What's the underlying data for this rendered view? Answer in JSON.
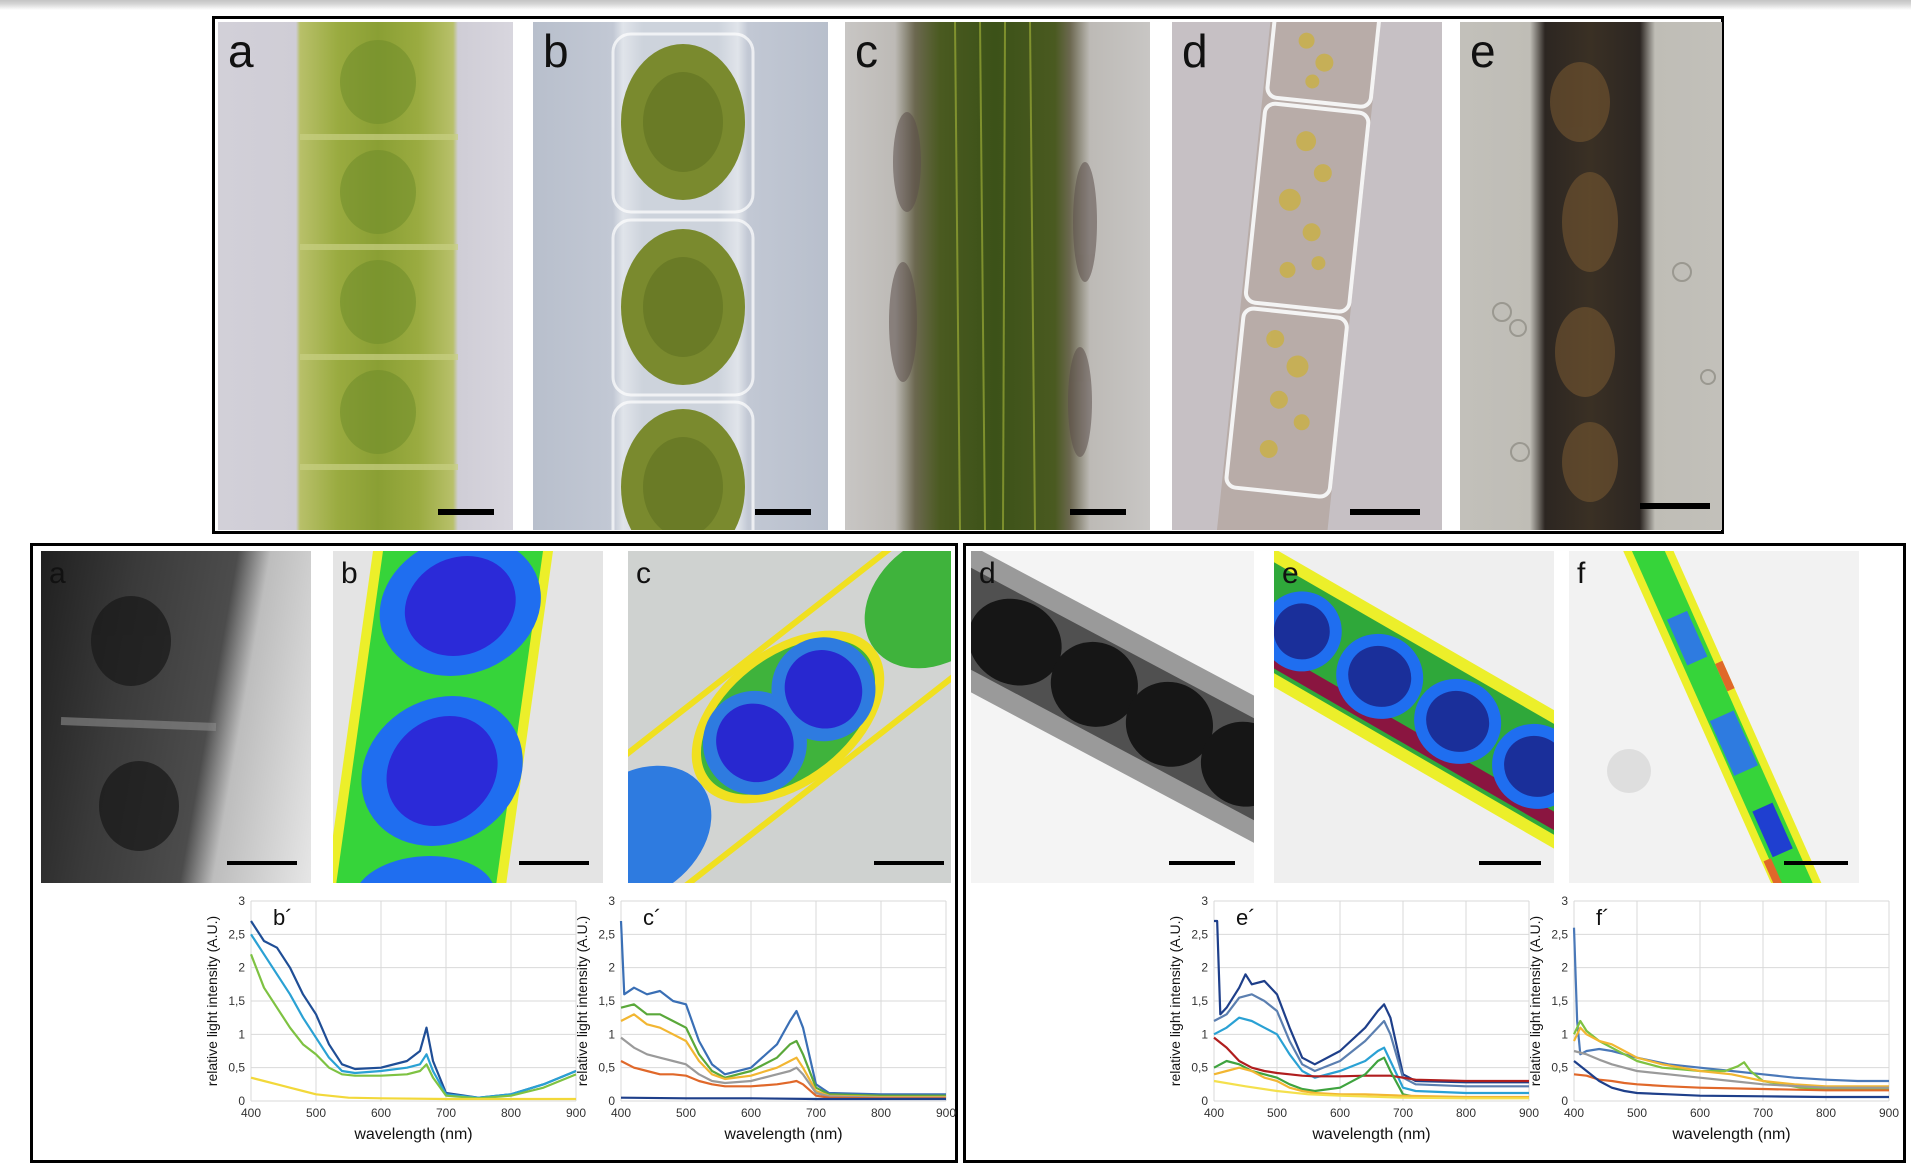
{
  "figure": {
    "top_row": {
      "panels": [
        {
          "label": "a"
        },
        {
          "label": "b"
        },
        {
          "label": "c"
        },
        {
          "label": "d"
        },
        {
          "label": "e"
        }
      ]
    },
    "bottom_left": {
      "panels": [
        {
          "label": "a"
        },
        {
          "label": "b"
        },
        {
          "label": "c"
        }
      ]
    },
    "bottom_right": {
      "panels": [
        {
          "label": "d"
        },
        {
          "label": "e"
        },
        {
          "label": "f"
        }
      ]
    }
  },
  "chart_data": [
    {
      "type": "line",
      "panel_label": "b´",
      "xlabel": "wavelength (nm)",
      "ylabel": "relative light intensity (A.U.)",
      "xlim": [
        400,
        900
      ],
      "ylim": [
        0,
        3
      ],
      "xticks": [
        "400",
        "500",
        "600",
        "700",
        "800",
        "900"
      ],
      "yticks": [
        "0",
        "0,5",
        "1",
        "1,5",
        "2",
        "2,5",
        "3"
      ],
      "grid": true,
      "series": [
        {
          "color": "#1f4e96",
          "x": [
            400,
            420,
            440,
            460,
            480,
            500,
            520,
            540,
            560,
            600,
            640,
            660,
            670,
            680,
            700,
            750,
            800,
            850,
            900
          ],
          "y": [
            2.7,
            2.4,
            2.3,
            2.0,
            1.6,
            1.3,
            0.85,
            0.55,
            0.48,
            0.5,
            0.6,
            0.75,
            1.1,
            0.6,
            0.12,
            0.05,
            0.1,
            0.25,
            0.45
          ]
        },
        {
          "color": "#2aa1d4",
          "x": [
            400,
            420,
            440,
            460,
            480,
            500,
            520,
            540,
            560,
            600,
            640,
            660,
            670,
            680,
            700,
            750,
            800,
            850,
            900
          ],
          "y": [
            2.5,
            2.2,
            1.9,
            1.6,
            1.25,
            0.95,
            0.65,
            0.45,
            0.42,
            0.45,
            0.5,
            0.55,
            0.7,
            0.45,
            0.1,
            0.05,
            0.1,
            0.25,
            0.45
          ]
        },
        {
          "color": "#7ec242",
          "x": [
            400,
            420,
            440,
            460,
            480,
            500,
            520,
            540,
            560,
            600,
            640,
            660,
            670,
            680,
            700,
            750,
            800,
            850,
            900
          ],
          "y": [
            2.2,
            1.7,
            1.4,
            1.1,
            0.85,
            0.7,
            0.5,
            0.4,
            0.38,
            0.38,
            0.4,
            0.45,
            0.55,
            0.35,
            0.08,
            0.04,
            0.08,
            0.2,
            0.4
          ]
        },
        {
          "color": "#f2d83a",
          "x": [
            400,
            420,
            440,
            460,
            480,
            500,
            550,
            600,
            700,
            800,
            900
          ],
          "y": [
            0.35,
            0.3,
            0.25,
            0.2,
            0.15,
            0.1,
            0.05,
            0.04,
            0.03,
            0.03,
            0.03
          ]
        }
      ]
    },
    {
      "type": "line",
      "panel_label": "c´",
      "xlabel": "wavelength (nm)",
      "ylabel": "relative light intensity (A.U.)",
      "xlim": [
        400,
        900
      ],
      "ylim": [
        0,
        3
      ],
      "xticks": [
        "400",
        "500",
        "600",
        "700",
        "800",
        "900"
      ],
      "yticks": [
        "0",
        "0,5",
        "1",
        "1,5",
        "2",
        "2,5",
        "3"
      ],
      "grid": true,
      "series": [
        {
          "color": "#3a6fb5",
          "x": [
            400,
            405,
            420,
            440,
            460,
            480,
            500,
            520,
            540,
            560,
            600,
            640,
            660,
            670,
            680,
            700,
            720,
            800,
            900
          ],
          "y": [
            2.7,
            1.6,
            1.7,
            1.6,
            1.65,
            1.5,
            1.45,
            0.9,
            0.55,
            0.4,
            0.5,
            0.85,
            1.2,
            1.35,
            1.1,
            0.25,
            0.12,
            0.1,
            0.1
          ]
        },
        {
          "color": "#5aa83a",
          "x": [
            400,
            420,
            440,
            460,
            480,
            500,
            520,
            540,
            560,
            600,
            640,
            660,
            670,
            680,
            700,
            720,
            800,
            900
          ],
          "y": [
            1.4,
            1.45,
            1.3,
            1.3,
            1.2,
            1.1,
            0.7,
            0.45,
            0.35,
            0.45,
            0.65,
            0.85,
            0.9,
            0.7,
            0.2,
            0.1,
            0.08,
            0.08
          ]
        },
        {
          "color": "#f2b632",
          "x": [
            400,
            420,
            440,
            460,
            480,
            500,
            520,
            540,
            560,
            600,
            640,
            660,
            670,
            680,
            700,
            720,
            800,
            900
          ],
          "y": [
            1.2,
            1.3,
            1.15,
            1.1,
            1.0,
            0.9,
            0.6,
            0.4,
            0.33,
            0.38,
            0.5,
            0.6,
            0.65,
            0.5,
            0.15,
            0.08,
            0.06,
            0.06
          ]
        },
        {
          "color": "#9a9a9a",
          "x": [
            400,
            420,
            440,
            460,
            480,
            500,
            520,
            540,
            560,
            600,
            640,
            660,
            670,
            680,
            700,
            720,
            800,
            900
          ],
          "y": [
            0.95,
            0.8,
            0.7,
            0.65,
            0.6,
            0.55,
            0.4,
            0.3,
            0.27,
            0.3,
            0.4,
            0.45,
            0.5,
            0.4,
            0.12,
            0.07,
            0.05,
            0.05
          ]
        },
        {
          "color": "#e0682a",
          "x": [
            400,
            420,
            440,
            460,
            480,
            500,
            520,
            540,
            560,
            600,
            640,
            660,
            670,
            680,
            700,
            720,
            800,
            900
          ],
          "y": [
            0.6,
            0.5,
            0.45,
            0.4,
            0.4,
            0.38,
            0.3,
            0.25,
            0.22,
            0.22,
            0.25,
            0.28,
            0.3,
            0.25,
            0.08,
            0.05,
            0.04,
            0.04
          ]
        },
        {
          "color": "#1e3f8a",
          "x": [
            400,
            500,
            600,
            700,
            800,
            900
          ],
          "y": [
            0.05,
            0.04,
            0.04,
            0.03,
            0.03,
            0.03
          ]
        }
      ]
    },
    {
      "type": "line",
      "panel_label": "e´",
      "xlabel": "wavelength (nm)",
      "ylabel": "relative light intensity (A.U.)",
      "xlim": [
        400,
        900
      ],
      "ylim": [
        0,
        3
      ],
      "xticks": [
        "400",
        "500",
        "600",
        "700",
        "800",
        "900"
      ],
      "yticks": [
        "0",
        "0,5",
        "1",
        "1,5",
        "2",
        "2,5",
        "3"
      ],
      "grid": true,
      "series": [
        {
          "color": "#1e3f8a",
          "x": [
            400,
            405,
            410,
            420,
            440,
            450,
            460,
            480,
            500,
            520,
            540,
            560,
            600,
            640,
            660,
            670,
            680,
            700,
            720,
            800,
            900
          ],
          "y": [
            2.7,
            2.7,
            1.3,
            1.4,
            1.7,
            1.9,
            1.75,
            1.8,
            1.6,
            1.1,
            0.65,
            0.55,
            0.75,
            1.1,
            1.35,
            1.45,
            1.25,
            0.4,
            0.3,
            0.28,
            0.28
          ]
        },
        {
          "color": "#5b7fb0",
          "x": [
            400,
            420,
            440,
            460,
            480,
            500,
            520,
            540,
            560,
            600,
            640,
            660,
            670,
            680,
            700,
            720,
            800,
            900
          ],
          "y": [
            1.2,
            1.3,
            1.55,
            1.6,
            1.5,
            1.35,
            0.9,
            0.55,
            0.45,
            0.6,
            0.9,
            1.1,
            1.2,
            1.0,
            0.35,
            0.25,
            0.22,
            0.22
          ]
        },
        {
          "color": "#2aa1d4",
          "x": [
            400,
            420,
            440,
            460,
            480,
            500,
            520,
            540,
            560,
            600,
            640,
            660,
            670,
            680,
            700,
            720,
            800,
            900
          ],
          "y": [
            1.0,
            1.1,
            1.25,
            1.2,
            1.1,
            1.0,
            0.7,
            0.45,
            0.35,
            0.45,
            0.6,
            0.75,
            0.8,
            0.6,
            0.2,
            0.15,
            0.12,
            0.12
          ]
        },
        {
          "color": "#b01e1e",
          "x": [
            400,
            420,
            440,
            460,
            480,
            500,
            520,
            540,
            560,
            600,
            640,
            660,
            680,
            700,
            720,
            800,
            900
          ],
          "y": [
            0.95,
            0.8,
            0.6,
            0.5,
            0.45,
            0.42,
            0.4,
            0.38,
            0.37,
            0.37,
            0.38,
            0.38,
            0.38,
            0.35,
            0.32,
            0.3,
            0.3
          ]
        },
        {
          "color": "#3fa33f",
          "x": [
            400,
            420,
            440,
            460,
            480,
            500,
            520,
            540,
            560,
            600,
            640,
            660,
            670,
            680,
            700,
            720,
            800,
            900
          ],
          "y": [
            0.5,
            0.6,
            0.55,
            0.45,
            0.4,
            0.35,
            0.25,
            0.18,
            0.15,
            0.2,
            0.4,
            0.6,
            0.65,
            0.45,
            0.1,
            0.06,
            0.05,
            0.05
          ]
        },
        {
          "color": "#f2b632",
          "x": [
            400,
            420,
            440,
            460,
            480,
            500,
            520,
            540,
            560,
            600,
            640,
            700,
            800,
            900
          ],
          "y": [
            0.4,
            0.45,
            0.5,
            0.45,
            0.35,
            0.3,
            0.2,
            0.15,
            0.12,
            0.1,
            0.1,
            0.08,
            0.06,
            0.06
          ]
        },
        {
          "color": "#f4e04d",
          "x": [
            400,
            450,
            500,
            550,
            600,
            700,
            800,
            900
          ],
          "y": [
            0.3,
            0.22,
            0.15,
            0.1,
            0.08,
            0.05,
            0.04,
            0.04
          ]
        }
      ]
    },
    {
      "type": "line",
      "panel_label": "f´",
      "xlabel": "wavelength (nm)",
      "ylabel": "relative light intensity (A.U.)",
      "xlim": [
        400,
        900
      ],
      "ylim": [
        0,
        3
      ],
      "xticks": [
        "400",
        "500",
        "600",
        "700",
        "800",
        "900"
      ],
      "yticks": [
        "0",
        "0,5",
        "1",
        "1,5",
        "2",
        "2,5",
        "3"
      ],
      "grid": true,
      "series": [
        {
          "color": "#4a78b8",
          "x": [
            400,
            405,
            410,
            420,
            440,
            460,
            480,
            500,
            550,
            600,
            650,
            700,
            750,
            800,
            850,
            900
          ],
          "y": [
            2.6,
            1.2,
            0.7,
            0.75,
            0.78,
            0.75,
            0.7,
            0.65,
            0.55,
            0.5,
            0.45,
            0.4,
            0.35,
            0.32,
            0.3,
            0.3
          ]
        },
        {
          "color": "#7ec242",
          "x": [
            400,
            410,
            420,
            440,
            460,
            480,
            500,
            540,
            600,
            640,
            660,
            670,
            680,
            700,
            760,
            800,
            900
          ],
          "y": [
            1.0,
            1.2,
            1.05,
            0.9,
            0.8,
            0.7,
            0.6,
            0.5,
            0.45,
            0.45,
            0.52,
            0.58,
            0.45,
            0.3,
            0.2,
            0.18,
            0.18
          ]
        },
        {
          "color": "#f2b632",
          "x": [
            400,
            410,
            420,
            440,
            460,
            480,
            500,
            540,
            600,
            650,
            700,
            750,
            800,
            900
          ],
          "y": [
            0.9,
            1.1,
            1.0,
            0.9,
            0.85,
            0.75,
            0.65,
            0.55,
            0.45,
            0.4,
            0.3,
            0.25,
            0.22,
            0.22
          ]
        },
        {
          "color": "#9a9a9a",
          "x": [
            400,
            420,
            440,
            460,
            480,
            500,
            550,
            600,
            650,
            700,
            800,
            900
          ],
          "y": [
            0.75,
            0.7,
            0.62,
            0.55,
            0.5,
            0.45,
            0.4,
            0.35,
            0.3,
            0.25,
            0.2,
            0.2
          ]
        },
        {
          "color": "#e0682a",
          "x": [
            400,
            420,
            440,
            460,
            480,
            500,
            550,
            600,
            700,
            800,
            900
          ],
          "y": [
            0.4,
            0.38,
            0.32,
            0.3,
            0.27,
            0.25,
            0.22,
            0.2,
            0.18,
            0.16,
            0.16
          ]
        },
        {
          "color": "#1e3f8a",
          "x": [
            400,
            420,
            440,
            460,
            480,
            500,
            550,
            600,
            700,
            800,
            900
          ],
          "y": [
            0.6,
            0.45,
            0.3,
            0.2,
            0.15,
            0.12,
            0.1,
            0.08,
            0.07,
            0.06,
            0.06
          ]
        }
      ]
    }
  ]
}
